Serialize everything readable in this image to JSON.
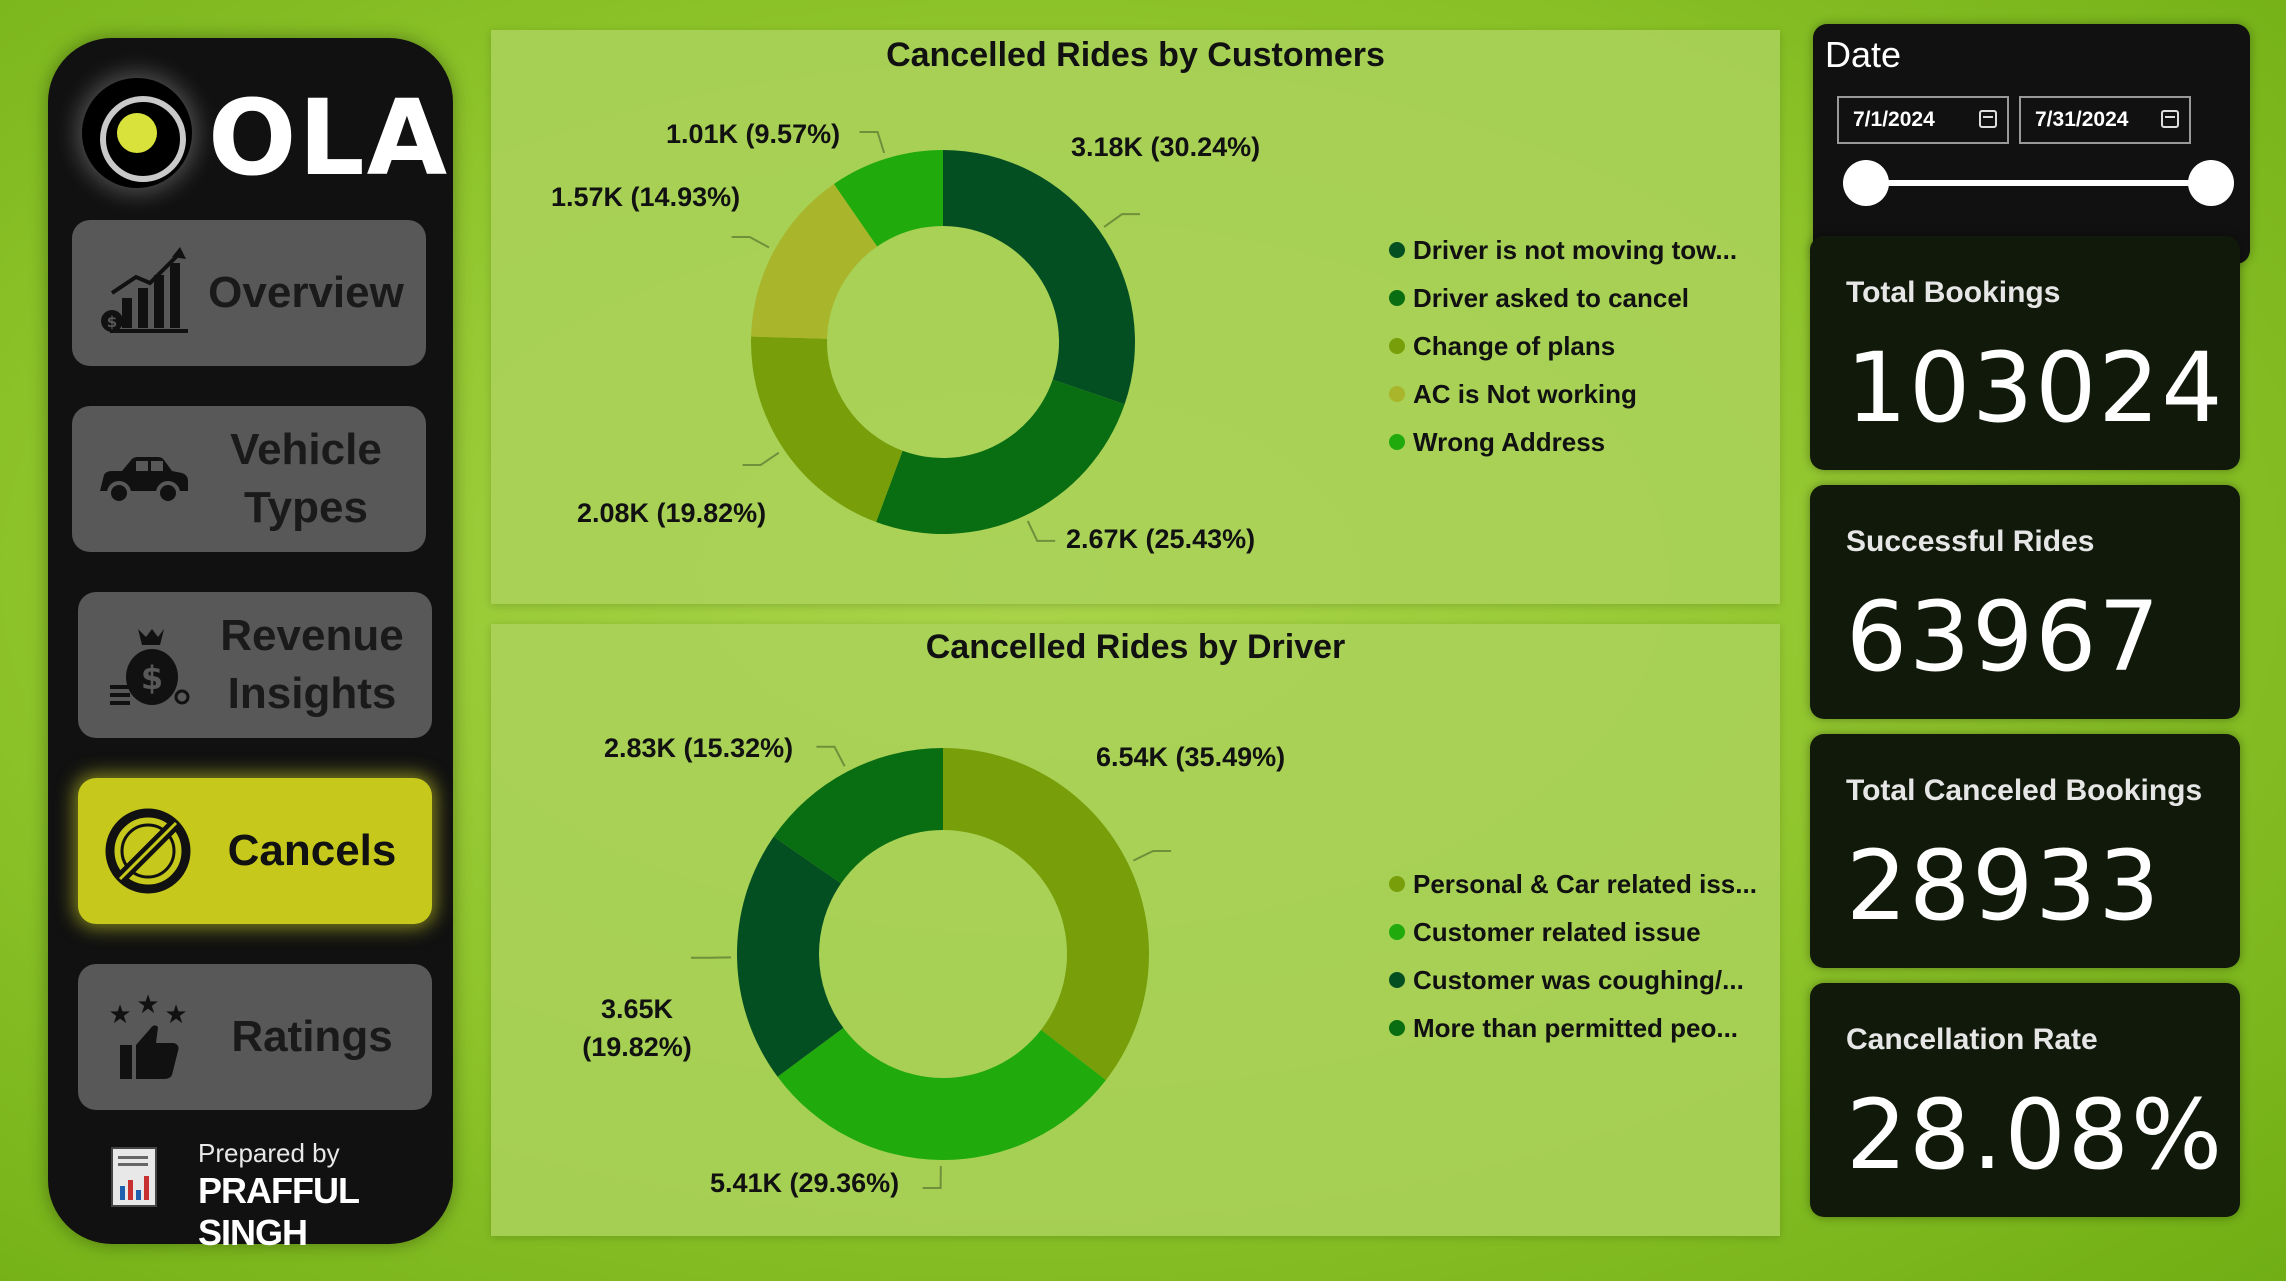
{
  "app": {
    "logo_text": "OLA"
  },
  "nav": [
    {
      "label_line1": "Overview",
      "label_line2": ""
    },
    {
      "label_line1": "Vehicle",
      "label_line2": "Types"
    },
    {
      "label_line1": "Revenue",
      "label_line2": "Insights"
    },
    {
      "label_line1": "Cancels",
      "label_line2": ""
    },
    {
      "label_line1": "Ratings",
      "label_line2": ""
    }
  ],
  "active_nav": "Cancels",
  "prepared_by": {
    "caption": "Prepared by",
    "name": "PRAFFUL SINGH"
  },
  "date_filter": {
    "title": "Date",
    "start": "7/1/2024",
    "end": "7/31/2024"
  },
  "kpis": [
    {
      "label": "Total Bookings",
      "value": "103024"
    },
    {
      "label": "Successful Rides",
      "value": "63967"
    },
    {
      "label": "Total Canceled Bookings",
      "value": "28933"
    },
    {
      "label": "Cancellation Rate",
      "value": "28.08%"
    }
  ],
  "colors": {
    "dark_green": "#044f22",
    "green": "#096d12",
    "olive": "#789e0a",
    "yellow_olive": "#a9b52a",
    "bright_green": "#20aa0c",
    "sidebar_bg": "#111111",
    "active_nav": "#c6c91c"
  },
  "chart_data": [
    {
      "type": "pie",
      "title": "Cancelled Rides by Customers",
      "categories": [
        "Driver is not moving tow...",
        "Driver asked to cancel",
        "Change of plans",
        "AC is Not working",
        "Wrong Address"
      ],
      "values": [
        3180,
        2670,
        2080,
        1570,
        1010
      ],
      "percentages": [
        30.24,
        25.43,
        19.82,
        14.93,
        9.57
      ],
      "data_labels": [
        "3.18K (30.24%)",
        "2.67K (25.43%)",
        "2.08K (19.82%)",
        "1.57K (14.93%)",
        "1.01K (9.57%)"
      ],
      "colors": [
        "#044f22",
        "#096d12",
        "#789e0a",
        "#a9b52a",
        "#20aa0c"
      ],
      "legend": "right"
    },
    {
      "type": "pie",
      "title": "Cancelled Rides by Driver",
      "categories": [
        "Personal & Car related iss...",
        "Customer related issue",
        "Customer was coughing/...",
        "More than permitted peo..."
      ],
      "values": [
        6540,
        5410,
        3650,
        2830
      ],
      "percentages": [
        35.49,
        29.36,
        19.82,
        15.32
      ],
      "data_labels": [
        "6.54K (35.49%)",
        "5.41K (29.36%)",
        "3.65K (19.82%)",
        "2.83K (15.32%)"
      ],
      "colors": [
        "#789e0a",
        "#20aa0c",
        "#044f22",
        "#096d12"
      ],
      "legend": "right"
    }
  ]
}
